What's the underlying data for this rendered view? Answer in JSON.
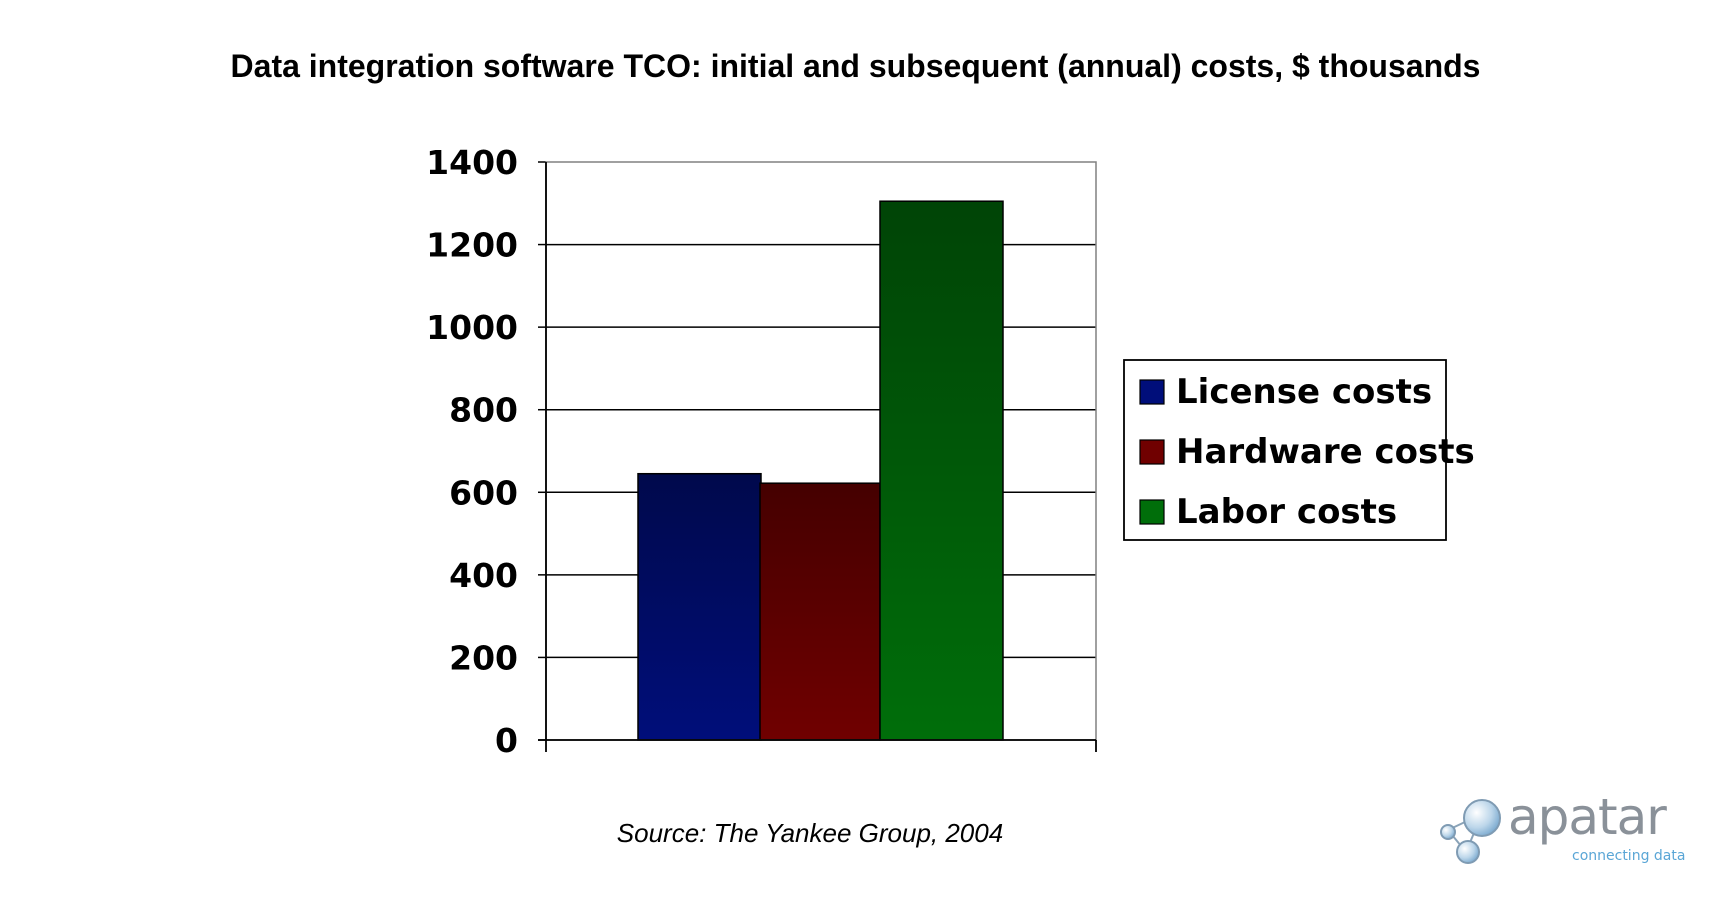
{
  "title": "Data integration software TCO: initial and subsequent (annual) costs, $ thousands",
  "source": "Source: The Yankee Group, 2004",
  "logo": {
    "word": "apatar",
    "tagline": "connecting data"
  },
  "chart_data": {
    "type": "bar",
    "title": "Data integration software TCO: initial and subsequent (annual) costs, $ thousands",
    "categories": [
      ""
    ],
    "series": [
      {
        "name": "License costs",
        "values": [
          645
        ],
        "color": "#000e7a"
      },
      {
        "name": "Hardware costs",
        "values": [
          622
        ],
        "color": "#700000"
      },
      {
        "name": "Labor costs",
        "values": [
          1305
        ],
        "color": "#006e0a"
      }
    ],
    "ylim": [
      0,
      1400
    ],
    "yticks": [
      0,
      200,
      400,
      600,
      800,
      1000,
      1200,
      1400
    ],
    "grid": true,
    "legend": "right"
  }
}
